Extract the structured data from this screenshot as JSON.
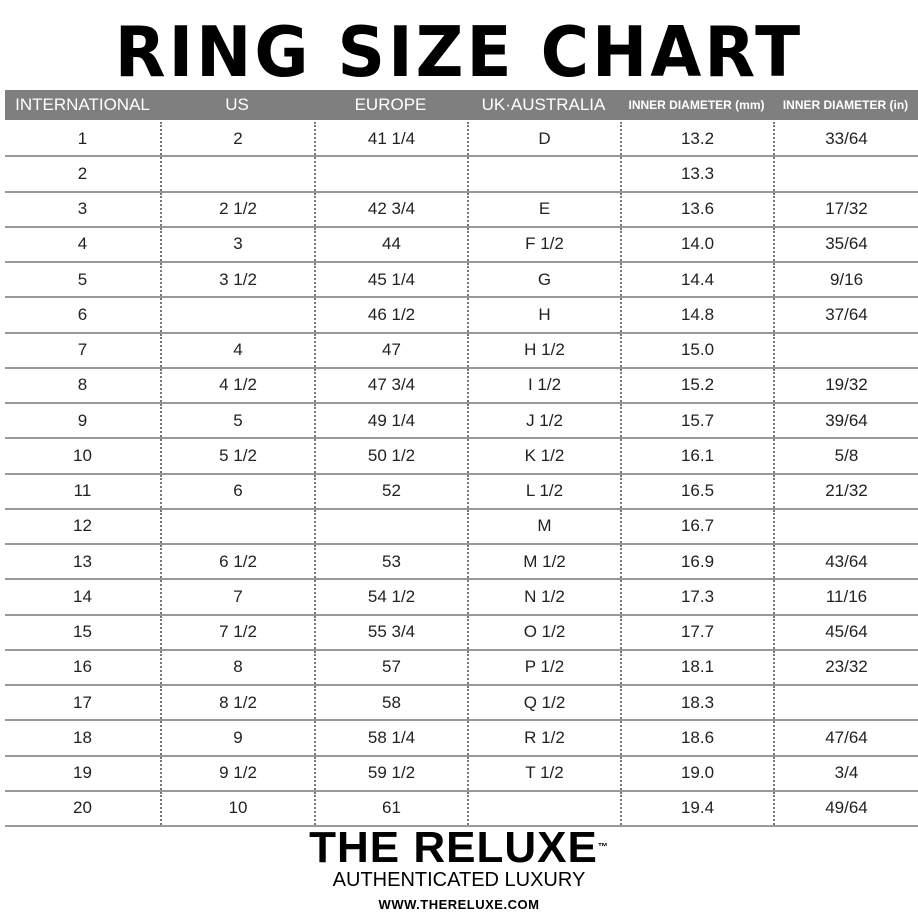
{
  "title": "RING SIZE CHART",
  "headers": [
    "INTERNATIONAL",
    "US",
    "EUROPE",
    "UK·AUSTRALIA",
    "INNER DIAMETER (mm)",
    "INNER DIAMETER (in)"
  ],
  "rows": [
    [
      "1",
      "2",
      "41 1/4",
      "D",
      "13.2",
      "33/64"
    ],
    [
      "2",
      "",
      "",
      "",
      "13.3",
      ""
    ],
    [
      "3",
      "2 1/2",
      "42 3/4",
      "E",
      "13.6",
      "17/32"
    ],
    [
      "4",
      "3",
      "44",
      "F 1/2",
      "14.0",
      "35/64"
    ],
    [
      "5",
      "3 1/2",
      "45 1/4",
      "G",
      "14.4",
      "9/16"
    ],
    [
      "6",
      "",
      "46 1/2",
      "H",
      "14.8",
      "37/64"
    ],
    [
      "7",
      "4",
      "47",
      "H 1/2",
      "15.0",
      ""
    ],
    [
      "8",
      "4 1/2",
      "47 3/4",
      "I 1/2",
      "15.2",
      "19/32"
    ],
    [
      "9",
      "5",
      "49 1/4",
      "J 1/2",
      "15.7",
      "39/64"
    ],
    [
      "10",
      "5 1/2",
      "50 1/2",
      "K 1/2",
      "16.1",
      "5/8"
    ],
    [
      "11",
      "6",
      "52",
      "L 1/2",
      "16.5",
      "21/32"
    ],
    [
      "12",
      "",
      "",
      "M",
      "16.7",
      ""
    ],
    [
      "13",
      "6 1/2",
      "53",
      "M 1/2",
      "16.9",
      "43/64"
    ],
    [
      "14",
      "7",
      "54 1/2",
      "N 1/2",
      "17.3",
      "11/16"
    ],
    [
      "15",
      "7 1/2",
      "55 3/4",
      "O 1/2",
      "17.7",
      "45/64"
    ],
    [
      "16",
      "8",
      "57",
      "P 1/2",
      "18.1",
      "23/32"
    ],
    [
      "17",
      "8 1/2",
      "58",
      "Q 1/2",
      "18.3",
      ""
    ],
    [
      "18",
      "9",
      "58 1/4",
      "R 1/2",
      "18.6",
      "47/64"
    ],
    [
      "19",
      "9 1/2",
      "59 1/2",
      "T 1/2",
      "19.0",
      "3/4"
    ],
    [
      "20",
      "10",
      "61",
      "",
      "19.4",
      "49/64"
    ]
  ],
  "footer": {
    "brand": "THE RELUXE",
    "tm": "™",
    "tagline": "AUTHENTICATED LUXURY",
    "url": "WWW.THERELUXE.COM"
  },
  "colors": {
    "header_bg": "#7f7f7f",
    "text": "#222222"
  }
}
